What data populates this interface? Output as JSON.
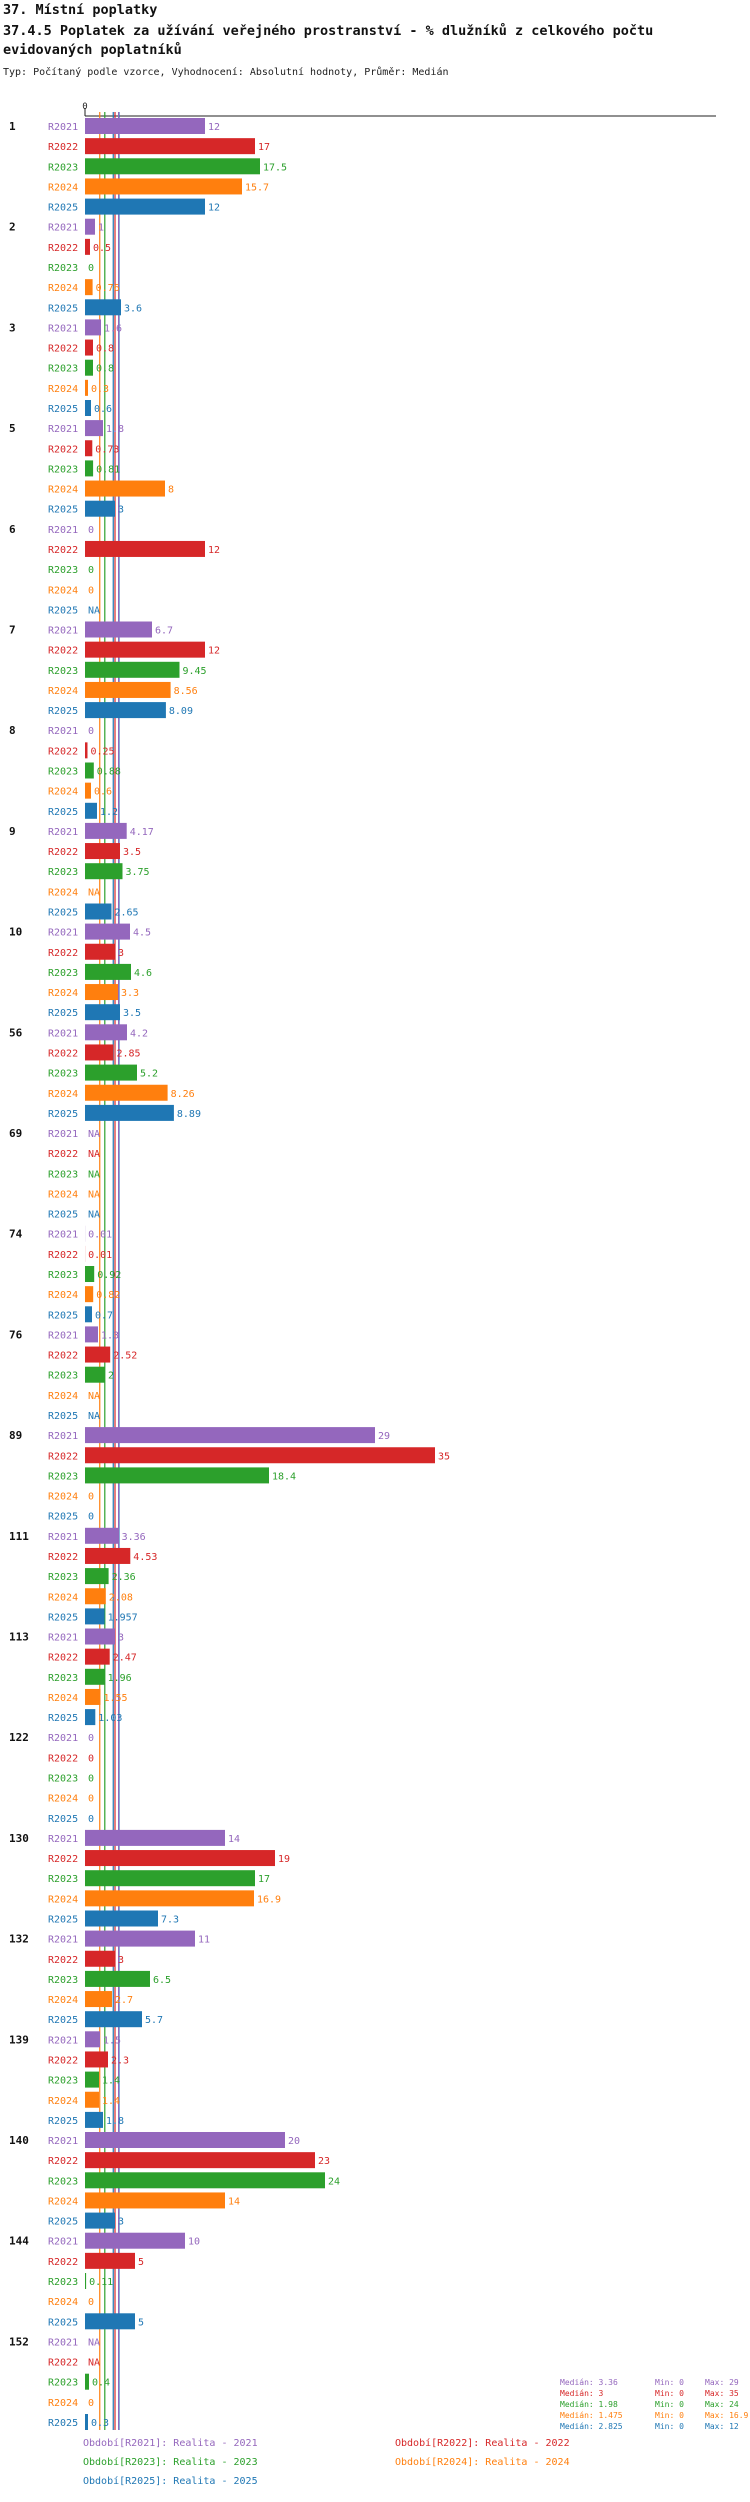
{
  "page": {
    "title": "37. Místní poplatky",
    "subtitle": "37.4.5 Poplatek za užívání veřejného prostranství - % dlužníků z celkového počtu evidovaných poplatníků",
    "description": "Typ: Počítaný podle vzorce, Vyhodnocení: Absolutní hodnoty, Průměr: Medián"
  },
  "colors": {
    "R2021": "#9467bd",
    "R2022": "#d62728",
    "R2023": "#2ca02c",
    "R2024": "#ff7f0e",
    "R2025": "#1f77b4"
  },
  "chart_data": {
    "type": "bar",
    "orientation": "horizontal",
    "x_axis_zero_label": "0",
    "xlim": [
      0,
      35
    ],
    "series_names": [
      "R2021",
      "R2022",
      "R2023",
      "R2024",
      "R2025"
    ],
    "groups": [
      {
        "label": "1",
        "values": [
          12,
          17,
          17.5,
          15.7,
          12
        ],
        "labels": [
          "12",
          "17",
          "17.5",
          "15.7",
          "12"
        ]
      },
      {
        "label": "2",
        "values": [
          1,
          0.5,
          0,
          0.76,
          3.6
        ],
        "labels": [
          "1",
          "0.5",
          "0",
          "0.76",
          "3.6"
        ]
      },
      {
        "label": "3",
        "values": [
          1.6,
          0.8,
          0.8,
          0.3,
          0.6
        ],
        "labels": [
          "1.6",
          "0.8",
          "0.8",
          "0.3",
          "0.6"
        ]
      },
      {
        "label": "5",
        "values": [
          1.8,
          0.73,
          0.81,
          8,
          3
        ],
        "labels": [
          "1.8",
          "0.73",
          "0.81",
          "8",
          "3"
        ]
      },
      {
        "label": "6",
        "values": [
          0,
          12,
          0,
          0,
          null
        ],
        "labels": [
          "0",
          "12",
          "0",
          "0",
          "NA"
        ]
      },
      {
        "label": "7",
        "values": [
          6.7,
          12,
          9.45,
          8.56,
          8.09
        ],
        "labels": [
          "6.7",
          "12",
          "9.45",
          "8.56",
          "8.09"
        ]
      },
      {
        "label": "8",
        "values": [
          0,
          0.25,
          0.88,
          0.6,
          1.2
        ],
        "labels": [
          "0",
          "0.25",
          "0.88",
          "0.6",
          "1.2"
        ]
      },
      {
        "label": "9",
        "values": [
          4.17,
          3.5,
          3.75,
          null,
          2.65
        ],
        "labels": [
          "4.17",
          "3.5",
          "3.75",
          "NA",
          "2.65"
        ]
      },
      {
        "label": "10",
        "values": [
          4.5,
          3,
          4.6,
          3.3,
          3.5
        ],
        "labels": [
          "4.5",
          "3",
          "4.6",
          "3.3",
          "3.5"
        ]
      },
      {
        "label": "56",
        "values": [
          4.2,
          2.85,
          5.2,
          8.26,
          8.89
        ],
        "labels": [
          "4.2",
          "2.85",
          "5.2",
          "8.26",
          "8.89"
        ]
      },
      {
        "label": "69",
        "values": [
          null,
          null,
          null,
          null,
          null
        ],
        "labels": [
          "NA",
          "NA",
          "NA",
          "NA",
          "NA"
        ]
      },
      {
        "label": "74",
        "values": [
          0.01,
          0.01,
          0.92,
          0.82,
          0.7
        ],
        "labels": [
          "0.01",
          "0.01",
          "0.92",
          "0.82",
          "0.7"
        ]
      },
      {
        "label": "76",
        "values": [
          1.3,
          2.52,
          2,
          null,
          null
        ],
        "labels": [
          "1.3",
          "2.52",
          "2",
          "NA",
          "NA"
        ]
      },
      {
        "label": "89",
        "values": [
          29,
          35,
          18.4,
          0,
          0
        ],
        "labels": [
          "29",
          "35",
          "18.4",
          "0",
          "0"
        ]
      },
      {
        "label": "111",
        "values": [
          3.36,
          4.53,
          2.36,
          2.08,
          1.957
        ],
        "labels": [
          "3.36",
          "4.53",
          "2.36",
          "2.08",
          "1.957"
        ]
      },
      {
        "label": "113",
        "values": [
          3,
          2.47,
          1.96,
          1.55,
          1.03
        ],
        "labels": [
          "3",
          "2.47",
          "1.96",
          "1.55",
          "1.03"
        ]
      },
      {
        "label": "122",
        "values": [
          0,
          0,
          0,
          0,
          0
        ],
        "labels": [
          "0",
          "0",
          "0",
          "0",
          "0"
        ]
      },
      {
        "label": "130",
        "values": [
          14,
          19,
          17,
          16.9,
          7.3
        ],
        "labels": [
          "14",
          "19",
          "17",
          "16.9",
          "7.3"
        ]
      },
      {
        "label": "132",
        "values": [
          11,
          3,
          6.5,
          2.7,
          5.7
        ],
        "labels": [
          "11",
          "3",
          "6.5",
          "2.7",
          "5.7"
        ]
      },
      {
        "label": "139",
        "values": [
          1.5,
          2.3,
          1.4,
          1.4,
          1.8
        ],
        "labels": [
          "1.5",
          "2.3",
          "1.4",
          "1.4",
          "1.8"
        ]
      },
      {
        "label": "140",
        "values": [
          20,
          23,
          24,
          14,
          3
        ],
        "labels": [
          "20",
          "23",
          "24",
          "14",
          "3"
        ]
      },
      {
        "label": "144",
        "values": [
          10,
          5,
          0.11,
          0,
          5
        ],
        "labels": [
          "10",
          "5",
          "0.11",
          "0",
          "5"
        ]
      },
      {
        "label": "152",
        "values": [
          null,
          null,
          0.4,
          0,
          0.3
        ],
        "labels": [
          "NA",
          "NA",
          "0.4",
          "0",
          "0.3"
        ]
      }
    ],
    "medians": [
      3.36,
      3,
      1.98,
      1.475,
      2.825
    ]
  },
  "legend": [
    {
      "key": "R2021",
      "text": "Období[R2021]: Realita - 2021"
    },
    {
      "key": "R2022",
      "text": "Období[R2022]: Realita - 2022"
    },
    {
      "key": "R2023",
      "text": "Období[R2023]: Realita - 2023"
    },
    {
      "key": "R2024",
      "text": "Období[R2024]: Realita - 2024"
    },
    {
      "key": "R2025",
      "text": "Období[R2025]: Realita - 2025"
    }
  ],
  "stats": [
    {
      "key": "R2021",
      "median": "Medián: 3.36",
      "min": "Min: 0",
      "max": "Max: 29"
    },
    {
      "key": "R2022",
      "median": "Medián: 3",
      "min": "Min: 0",
      "max": "Max: 35"
    },
    {
      "key": "R2023",
      "median": "Medián: 1.98",
      "min": "Min: 0",
      "max": "Max: 24"
    },
    {
      "key": "R2024",
      "median": "Medián: 1.475",
      "min": "Min: 0",
      "max": "Max: 16.9"
    },
    {
      "key": "R2025",
      "median": "Medián: 2.825",
      "min": "Min: 0",
      "max": "Max: 12"
    }
  ]
}
